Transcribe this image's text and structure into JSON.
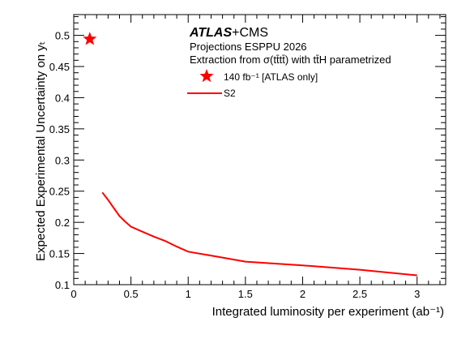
{
  "chart_data": {
    "type": "line",
    "experiment_prefix": "ATLAS",
    "experiment_suffix": "+CMS",
    "subtitle_1": "Projections ESPPU 2026",
    "subtitle_2": "Extraction from σ(tt̄tt̄) with tt̄H parametrized",
    "xlabel": "Integrated luminosity per experiment (ab⁻¹)",
    "ylabel": "Expected Experimental Uncertainty on yₜ",
    "xlim": [
      0,
      3.25
    ],
    "ylim": [
      0.1,
      0.5333
    ],
    "xticks": [
      0,
      0.5,
      1,
      1.5,
      2,
      2.5,
      3
    ],
    "xtick_labels": [
      "0",
      "0.5",
      "1",
      "1.5",
      "2",
      "2.5",
      "3"
    ],
    "yticks": [
      0.1,
      0.15,
      0.2,
      0.25,
      0.3,
      0.35,
      0.4,
      0.45,
      0.5
    ],
    "ytick_labels": [
      "0.1",
      "0.15",
      "0.2",
      "0.25",
      "0.3",
      "0.35",
      "0.4",
      "0.45",
      "0.5"
    ],
    "grid": false,
    "legend_position": "top-center",
    "series": [
      {
        "name": "S2",
        "color": "#ff0000",
        "kind": "line",
        "x": [
          0.25,
          0.3,
          0.35,
          0.4,
          0.45,
          0.5,
          0.6,
          0.7,
          0.8,
          0.9,
          1.0,
          1.25,
          1.5,
          2.0,
          2.5,
          3.0
        ],
        "y": [
          0.248,
          0.236,
          0.223,
          0.21,
          0.201,
          0.193,
          0.185,
          0.177,
          0.17,
          0.161,
          0.153,
          0.145,
          0.137,
          0.131,
          0.124,
          0.115
        ]
      },
      {
        "name": "140 fb⁻¹ [ATLAS only]",
        "color": "#ff0000",
        "kind": "marker",
        "marker": "star",
        "x": [
          0.14
        ],
        "y": [
          0.494
        ]
      }
    ]
  }
}
